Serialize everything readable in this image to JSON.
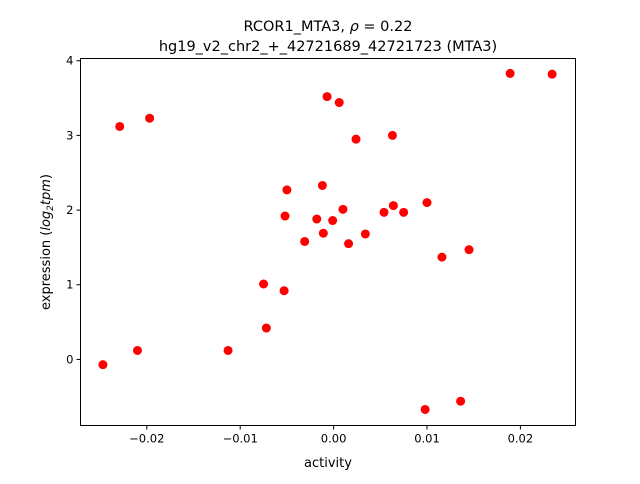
{
  "chart_data": {
    "type": "scatter",
    "title_line1_prefix": "RCOR1_MTA3, ",
    "title_rho": "ρ",
    "title_rho_value": " = 0.22",
    "title_line2": "hg19_v2_chr2_+_42721689_42721723 (MTA3)",
    "xlabel": "activity",
    "ylabel_prefix": "expression (",
    "ylabel_log": "log",
    "ylabel_sub": "2",
    "ylabel_tpm": "tpm",
    "ylabel_suffix": ")",
    "xlim": [
      -0.0271,
      0.0259
    ],
    "ylim": [
      -0.885,
      4.03
    ],
    "xticks": [
      -0.02,
      -0.01,
      0.0,
      0.01,
      0.02
    ],
    "xtick_labels": [
      "−0.02",
      "−0.01",
      "0.00",
      "0.01",
      "0.02"
    ],
    "yticks": [
      0,
      1,
      2,
      3,
      4
    ],
    "ytick_labels": [
      "0",
      "1",
      "2",
      "3",
      "4"
    ],
    "grid": false,
    "marker_color": "#ff0000",
    "points": [
      [
        -0.0247,
        -0.07
      ],
      [
        -0.0229,
        3.12
      ],
      [
        -0.021,
        0.12
      ],
      [
        -0.0197,
        3.23
      ],
      [
        -0.0113,
        0.12
      ],
      [
        -0.0075,
        1.01
      ],
      [
        -0.0072,
        0.42
      ],
      [
        -0.0053,
        0.92
      ],
      [
        -0.0052,
        1.92
      ],
      [
        -0.005,
        2.27
      ],
      [
        -0.0031,
        1.58
      ],
      [
        -0.0018,
        1.88
      ],
      [
        -0.0012,
        2.33
      ],
      [
        -0.0011,
        1.69
      ],
      [
        -0.0007,
        3.52
      ],
      [
        -0.0001,
        1.86
      ],
      [
        0.0006,
        3.44
      ],
      [
        0.001,
        2.01
      ],
      [
        0.0016,
        1.55
      ],
      [
        0.0024,
        2.95
      ],
      [
        0.0034,
        1.68
      ],
      [
        0.0054,
        1.97
      ],
      [
        0.0063,
        3.0
      ],
      [
        0.0064,
        2.06
      ],
      [
        0.0075,
        1.97
      ],
      [
        0.01,
        2.1
      ],
      [
        0.0098,
        -0.67
      ],
      [
        0.0116,
        1.37
      ],
      [
        0.0136,
        -0.56
      ],
      [
        0.0145,
        1.47
      ],
      [
        0.0189,
        3.83
      ],
      [
        0.0234,
        3.82
      ]
    ]
  }
}
